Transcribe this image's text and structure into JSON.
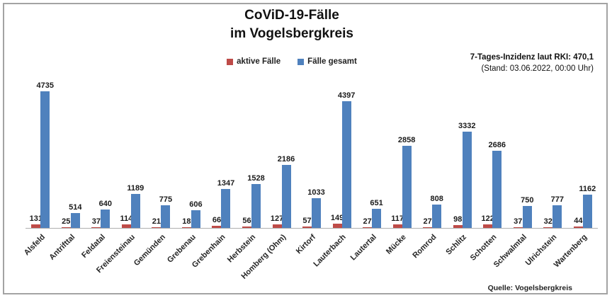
{
  "title": {
    "line1": "CoViD-19-Fälle",
    "line2": "im Vogelsbergkreis"
  },
  "legend": {
    "items": [
      {
        "label": "aktive Fälle",
        "color": "#be4b48"
      },
      {
        "label": "Fälle gesamt",
        "color": "#4f81bd"
      }
    ]
  },
  "info": {
    "line1": "7-Tages-Inzidenz laut RKI: 470,1",
    "line2": "(Stand: 03.06.2022, 00:00 Uhr)"
  },
  "source": "Quelle: Vogelsbergkreis",
  "chart_data": {
    "type": "bar",
    "title": "CoViD-19-Fälle im Vogelsbergkreis",
    "categories": [
      "Alsfeld",
      "Antrifttal",
      "Feldatal",
      "Freiensteinau",
      "Gemünden",
      "Grebenau",
      "Grebenhain",
      "Herbstein",
      "Homberg (Ohm)",
      "Kirtorf",
      "Lauterbach",
      "Lautertal",
      "Mücke",
      "Romrod",
      "Schlitz",
      "Schotten",
      "Schwalmtal",
      "Ulrichstein",
      "Wartenberg"
    ],
    "series": [
      {
        "key": "active",
        "name": "aktive Fälle",
        "color": "#be4b48",
        "values": [
          131,
          25,
          37,
          114,
          21,
          18,
          66,
          56,
          127,
          57,
          149,
          27,
          117,
          27,
          98,
          122,
          37,
          32,
          44
        ]
      },
      {
        "key": "total",
        "name": "Fälle gesamt",
        "color": "#4f81bd",
        "values": [
          4735,
          514,
          640,
          1189,
          775,
          606,
          1347,
          1528,
          2186,
          1033,
          4397,
          651,
          2858,
          808,
          3332,
          2686,
          750,
          777,
          1162
        ]
      }
    ],
    "xlabel": "",
    "ylabel": "",
    "y_axis_visible": false,
    "grid": false,
    "legend_position": "top",
    "data_labels": "outside-end",
    "x_tick_rotation": 45
  }
}
